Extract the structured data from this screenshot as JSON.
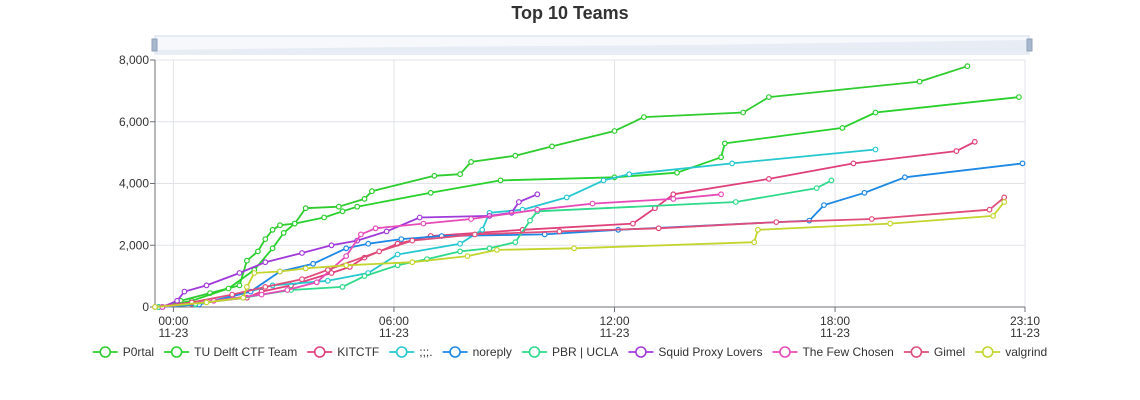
{
  "chart_data": {
    "type": "line",
    "title": "Top 10 Teams",
    "xlabel": "",
    "ylabel": "",
    "ylim": [
      0,
      8000
    ],
    "y_ticks": [
      0,
      2000,
      4000,
      6000,
      8000
    ],
    "y_tick_labels": [
      "0",
      "2,000",
      "4,000",
      "6,000",
      "8,000"
    ],
    "x_unit": "hours since 00:00 on 11-23",
    "xlim": [
      -0.5,
      23.1667
    ],
    "x_ticks": [
      {
        "x": 0,
        "line1": "00:00",
        "line2": "11-23"
      },
      {
        "x": 6,
        "line1": "06:00",
        "line2": "11-23"
      },
      {
        "x": 12,
        "line1": "12:00",
        "line2": "11-23"
      },
      {
        "x": 18,
        "line1": "18:00",
        "line2": "11-23"
      },
      {
        "x": 23.1667,
        "line1": "23:10",
        "line2": "11-23"
      }
    ],
    "grid": true,
    "data_zoom_slider": true,
    "legend_position": "bottom",
    "series": [
      {
        "name": "P0rtal",
        "color": "#2ecc2e",
        "points": [
          [
            -0.3,
            0
          ],
          [
            0.2,
            200
          ],
          [
            1.0,
            450
          ],
          [
            1.8,
            700
          ],
          [
            2.0,
            1500
          ],
          [
            2.3,
            1800
          ],
          [
            2.5,
            2200
          ],
          [
            2.7,
            2500
          ],
          [
            2.9,
            2650
          ],
          [
            3.3,
            2700
          ],
          [
            3.6,
            3200
          ],
          [
            4.5,
            3250
          ],
          [
            5.2,
            3500
          ],
          [
            5.4,
            3750
          ],
          [
            7.1,
            4250
          ],
          [
            7.8,
            4300
          ],
          [
            8.1,
            4700
          ],
          [
            9.3,
            4900
          ],
          [
            10.3,
            5200
          ],
          [
            12.0,
            5700
          ],
          [
            12.8,
            6150
          ],
          [
            15.5,
            6300
          ],
          [
            16.2,
            6800
          ],
          [
            20.3,
            7300
          ],
          [
            21.6,
            7800
          ]
        ]
      },
      {
        "name": "TU Delft CTF Team",
        "color": "#29d12c",
        "points": [
          [
            -0.4,
            0
          ],
          [
            0.5,
            200
          ],
          [
            1.5,
            600
          ],
          [
            2.2,
            1200
          ],
          [
            2.7,
            1900
          ],
          [
            3.0,
            2400
          ],
          [
            3.3,
            2700
          ],
          [
            4.1,
            2900
          ],
          [
            4.6,
            3100
          ],
          [
            5.0,
            3250
          ],
          [
            7.0,
            3700
          ],
          [
            8.9,
            4100
          ],
          [
            12.0,
            4200
          ],
          [
            13.7,
            4350
          ],
          [
            14.9,
            4850
          ],
          [
            15.0,
            5300
          ],
          [
            18.2,
            5800
          ],
          [
            19.1,
            6300
          ],
          [
            23.0,
            6800
          ]
        ]
      },
      {
        "name": "KITCTF",
        "color": "#e0407a",
        "points": [
          [
            -0.3,
            0
          ],
          [
            0.5,
            100
          ],
          [
            2.0,
            300
          ],
          [
            2.4,
            500
          ],
          [
            3.2,
            700
          ],
          [
            4.3,
            1100
          ],
          [
            4.8,
            1300
          ],
          [
            5.2,
            1600
          ],
          [
            6.1,
            2050
          ],
          [
            7.0,
            2300
          ],
          [
            9.5,
            2500
          ],
          [
            12.5,
            2700
          ],
          [
            13.1,
            3200
          ],
          [
            13.6,
            3650
          ],
          [
            16.2,
            4150
          ],
          [
            18.5,
            4650
          ],
          [
            21.3,
            5050
          ],
          [
            21.8,
            5350
          ]
        ]
      },
      {
        "name": ";;;.",
        "color": "#26c7cf",
        "points": [
          [
            -0.3,
            0
          ],
          [
            0.6,
            80
          ],
          [
            1.6,
            350
          ],
          [
            2.7,
            700
          ],
          [
            4.2,
            850
          ],
          [
            5.3,
            1100
          ],
          [
            6.1,
            1700
          ],
          [
            7.8,
            2050
          ],
          [
            8.4,
            2500
          ],
          [
            8.6,
            3050
          ],
          [
            9.5,
            3150
          ],
          [
            10.7,
            3550
          ],
          [
            11.7,
            4100
          ],
          [
            12.4,
            4300
          ],
          [
            15.2,
            4650
          ],
          [
            19.1,
            5100
          ]
        ]
      },
      {
        "name": "noreply",
        "color": "#1e88e5",
        "points": [
          [
            -0.4,
            0
          ],
          [
            0.7,
            80
          ],
          [
            2.1,
            500
          ],
          [
            2.9,
            1150
          ],
          [
            3.8,
            1400
          ],
          [
            4.7,
            1900
          ],
          [
            5.3,
            2050
          ],
          [
            6.2,
            2200
          ],
          [
            7.3,
            2300
          ],
          [
            10.1,
            2350
          ],
          [
            12.1,
            2500
          ],
          [
            17.3,
            2800
          ],
          [
            17.7,
            3300
          ],
          [
            18.8,
            3700
          ],
          [
            19.9,
            4200
          ],
          [
            23.1,
            4650
          ]
        ]
      },
      {
        "name": "PBR | UCLA",
        "color": "#2fd98a",
        "points": [
          [
            -0.4,
            0
          ],
          [
            0.6,
            100
          ],
          [
            1.9,
            300
          ],
          [
            3.2,
            550
          ],
          [
            4.6,
            650
          ],
          [
            5.2,
            1000
          ],
          [
            6.1,
            1350
          ],
          [
            6.9,
            1550
          ],
          [
            7.8,
            1800
          ],
          [
            8.6,
            1900
          ],
          [
            9.3,
            2100
          ],
          [
            9.7,
            2800
          ],
          [
            9.9,
            3100
          ],
          [
            15.3,
            3400
          ],
          [
            17.5,
            3850
          ],
          [
            17.9,
            4100
          ]
        ]
      },
      {
        "name": "Squid Proxy Lovers",
        "color": "#a03ad9",
        "points": [
          [
            -0.3,
            0
          ],
          [
            0.1,
            200
          ],
          [
            0.3,
            500
          ],
          [
            0.9,
            700
          ],
          [
            1.8,
            1100
          ],
          [
            2.5,
            1450
          ],
          [
            3.5,
            1750
          ],
          [
            4.3,
            2000
          ],
          [
            5.0,
            2150
          ],
          [
            5.8,
            2450
          ],
          [
            6.7,
            2900
          ],
          [
            8.6,
            2950
          ],
          [
            9.2,
            3050
          ],
          [
            9.4,
            3400
          ],
          [
            9.9,
            3650
          ]
        ]
      },
      {
        "name": "The Few Chosen",
        "color": "#e64bb8",
        "points": [
          [
            -0.3,
            0
          ],
          [
            1.1,
            200
          ],
          [
            2.4,
            400
          ],
          [
            3.1,
            550
          ],
          [
            3.9,
            800
          ],
          [
            4.7,
            1650
          ],
          [
            5.1,
            2350
          ],
          [
            5.5,
            2550
          ],
          [
            6.8,
            2700
          ],
          [
            8.1,
            2850
          ],
          [
            9.9,
            3150
          ],
          [
            11.4,
            3350
          ],
          [
            13.6,
            3500
          ],
          [
            14.9,
            3650
          ]
        ]
      },
      {
        "name": "Gimel",
        "color": "#e04d7a",
        "points": [
          [
            -0.5,
            0
          ],
          [
            0.5,
            150
          ],
          [
            1.6,
            400
          ],
          [
            2.5,
            650
          ],
          [
            3.5,
            900
          ],
          [
            4.2,
            1200
          ],
          [
            5.6,
            1800
          ],
          [
            6.5,
            2150
          ],
          [
            8.2,
            2350
          ],
          [
            10.5,
            2450
          ],
          [
            13.2,
            2550
          ],
          [
            16.4,
            2750
          ],
          [
            19.0,
            2850
          ],
          [
            22.2,
            3150
          ],
          [
            22.6,
            3550
          ]
        ]
      },
      {
        "name": "valgrind",
        "color": "#c3d42d",
        "points": [
          [
            -0.5,
            0
          ],
          [
            0.9,
            150
          ],
          [
            1.9,
            300
          ],
          [
            2.0,
            650
          ],
          [
            2.2,
            1100
          ],
          [
            2.9,
            1150
          ],
          [
            3.6,
            1250
          ],
          [
            4.7,
            1350
          ],
          [
            6.5,
            1450
          ],
          [
            8.0,
            1650
          ],
          [
            8.8,
            1850
          ],
          [
            10.9,
            1900
          ],
          [
            15.8,
            2100
          ],
          [
            15.9,
            2500
          ],
          [
            19.5,
            2700
          ],
          [
            22.3,
            2950
          ],
          [
            22.6,
            3400
          ]
        ]
      }
    ]
  }
}
